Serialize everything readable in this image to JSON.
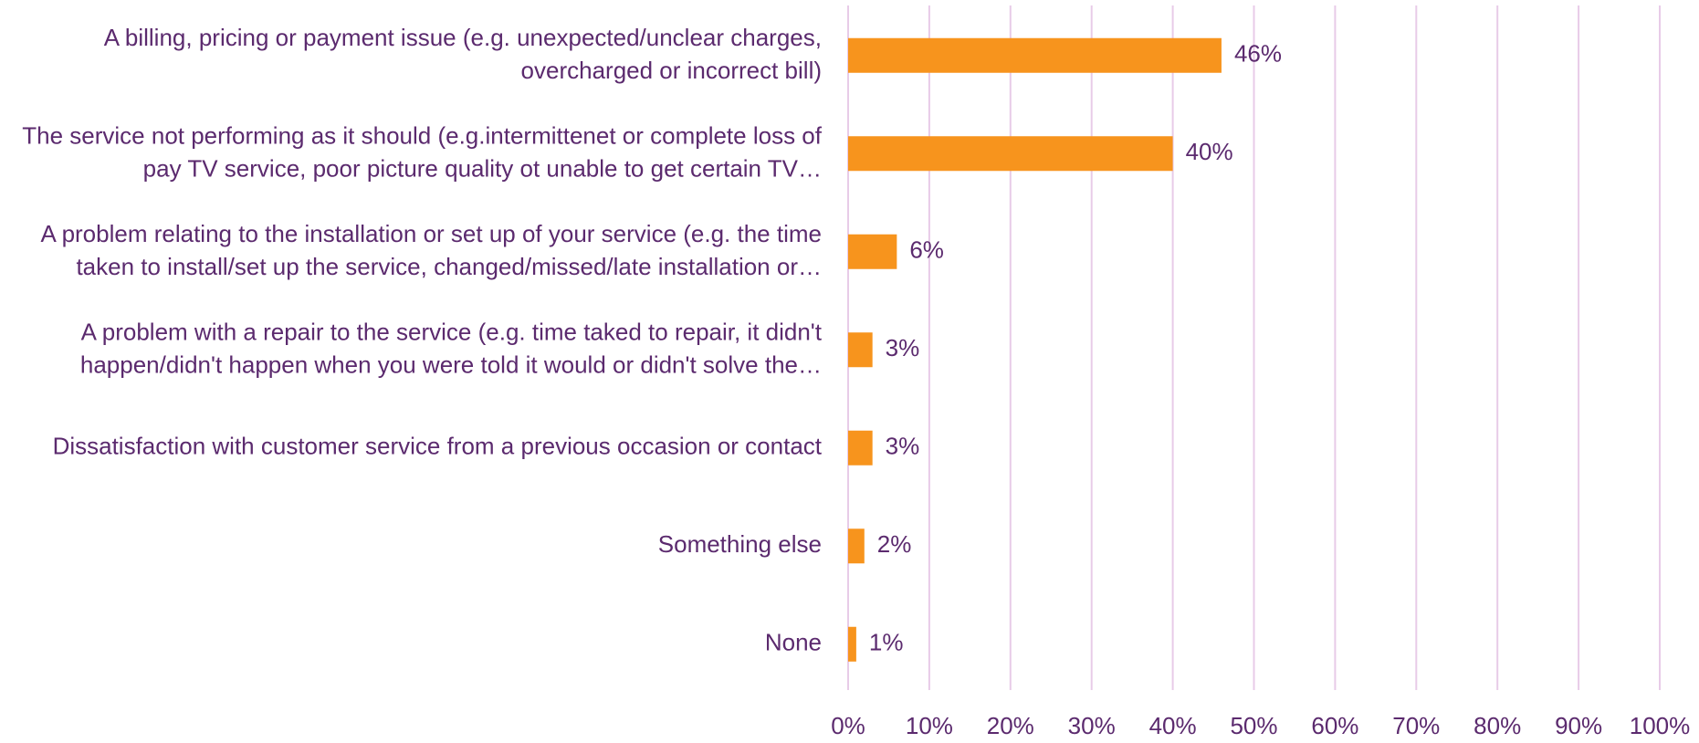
{
  "chart_data": {
    "type": "bar",
    "orientation": "horizontal",
    "categories": [
      "A billing, pricing or payment issue (e.g. unexpected/unclear charges,\novercharged or incorrect bill)",
      "The service not performing as it should (e.g.intermittenet or complete loss of\npay TV service, poor picture quality ot unable to get certain TV…",
      "A problem relating to the installation or set up of your service (e.g. the time\ntaken to install/set up the service, changed/missed/late installation or…",
      "A problem with a repair to the service (e.g. time taked to repair, it didn't\nhappen/didn't happen when you were told it would or didn't solve the…",
      "Dissatisfaction with customer service from a previous occasion or contact",
      "Something else",
      "None"
    ],
    "values": [
      46,
      40,
      6,
      3,
      3,
      2,
      1
    ],
    "value_labels": [
      "46%",
      "40%",
      "6%",
      "3%",
      "3%",
      "2%",
      "1%"
    ],
    "color": "#f7941d",
    "xlim": [
      0,
      100
    ],
    "xticks": [
      {
        "value": 0,
        "label": "0%"
      },
      {
        "value": 10,
        "label": "10%"
      },
      {
        "value": 20,
        "label": "20%"
      },
      {
        "value": 30,
        "label": "30%"
      },
      {
        "value": 40,
        "label": "40%"
      },
      {
        "value": 50,
        "label": "50%"
      },
      {
        "value": 60,
        "label": "60%"
      },
      {
        "value": 70,
        "label": "70%"
      },
      {
        "value": 80,
        "label": "80%"
      },
      {
        "value": 90,
        "label": "90%"
      },
      {
        "value": 100,
        "label": "100%"
      }
    ],
    "grid": true
  }
}
